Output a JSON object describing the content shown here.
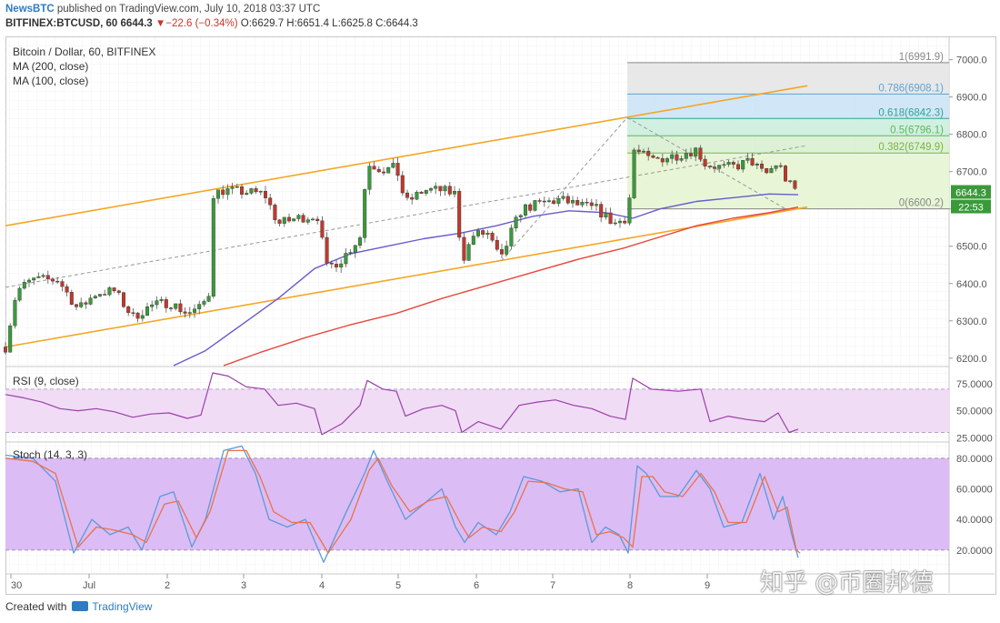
{
  "header": {
    "brand": "NewsBTC",
    "published": " published on TradingView.com, July 10, 2018 03:37 UTC",
    "symbol": "BITFINEX:BTCUSD, 60",
    "last": "6644.3",
    "change_arrow": "▼",
    "change": "−22.6 (−0.34%)",
    "ohlc": "O:6629.7 H:6651.4 L:6625.8 C:6644.3"
  },
  "footer": {
    "created_with": "Created with",
    "tradingview": "TradingView"
  },
  "watermark": "知乎 @币圈邦德",
  "colors": {
    "up": "#3a9a3a",
    "down": "#c0392b",
    "channel": "#f5a623",
    "ma200": "#e8463c",
    "ma100": "#6a5acd",
    "rsi": "#9b3fa8",
    "rsi_band": "#f0dcf5",
    "stoch_band": "#dcbcf5",
    "stoch_k": "#5b9bd5",
    "stoch_d": "#e8724e"
  },
  "chart_data": [
    {
      "type": "candlestick",
      "title": "Bitcoin / Dollar, 60, BITFINEX",
      "legend": [
        "MA (200, close)",
        "MA (100, close)"
      ],
      "x_ticks": [
        "30",
        "Jul",
        "2",
        "3",
        "4",
        "5",
        "6",
        "7",
        "8",
        "9"
      ],
      "y_ticks": [
        "7000.0",
        "6900.0",
        "6800.0",
        "6700.0",
        "6600.0",
        "6500.0",
        "6400.0",
        "6300.0",
        "6200.0"
      ],
      "ylim": [
        6180,
        7060
      ],
      "last_price_label": "6644.3",
      "countdown_label": "22:53",
      "candle_anchors": [
        [
          0,
          6230
        ],
        [
          12,
          6380
        ],
        [
          30,
          6410
        ],
        [
          58,
          6410
        ],
        [
          80,
          6330
        ],
        [
          100,
          6375
        ],
        [
          120,
          6380
        ],
        [
          140,
          6310
        ],
        [
          160,
          6340
        ],
        [
          180,
          6350
        ],
        [
          200,
          6320
        ],
        [
          215,
          6335
        ],
        [
          225,
          6380
        ],
        [
          228,
          6640
        ],
        [
          240,
          6650
        ],
        [
          265,
          6645
        ],
        [
          285,
          6640
        ],
        [
          300,
          6560
        ],
        [
          320,
          6575
        ],
        [
          335,
          6580
        ],
        [
          345,
          6580
        ],
        [
          352,
          6440
        ],
        [
          370,
          6465
        ],
        [
          390,
          6525
        ],
        [
          398,
          6725
        ],
        [
          415,
          6705
        ],
        [
          430,
          6710
        ],
        [
          440,
          6615
        ],
        [
          460,
          6650
        ],
        [
          480,
          6650
        ],
        [
          495,
          6640
        ],
        [
          502,
          6460
        ],
        [
          515,
          6530
        ],
        [
          530,
          6535
        ],
        [
          545,
          6460
        ],
        [
          555,
          6530
        ],
        [
          568,
          6600
        ],
        [
          590,
          6615
        ],
        [
          610,
          6625
        ],
        [
          630,
          6610
        ],
        [
          650,
          6600
        ],
        [
          670,
          6560
        ],
        [
          685,
          6580
        ],
        [
          690,
          6760
        ],
        [
          710,
          6730
        ],
        [
          740,
          6745
        ],
        [
          760,
          6760
        ],
        [
          770,
          6720
        ],
        [
          790,
          6710
        ],
        [
          805,
          6715
        ],
        [
          820,
          6730
        ],
        [
          835,
          6690
        ],
        [
          850,
          6725
        ],
        [
          860,
          6670
        ],
        [
          872,
          6644
        ]
      ],
      "ma100": [
        [
          185,
          6180
        ],
        [
          220,
          6220
        ],
        [
          260,
          6290
        ],
        [
          300,
          6360
        ],
        [
          340,
          6440
        ],
        [
          380,
          6480
        ],
        [
          420,
          6500
        ],
        [
          460,
          6520
        ],
        [
          500,
          6535
        ],
        [
          540,
          6555
        ],
        [
          580,
          6580
        ],
        [
          620,
          6595
        ],
        [
          660,
          6590
        ],
        [
          690,
          6575
        ],
        [
          720,
          6600
        ],
        [
          760,
          6620
        ],
        [
          800,
          6630
        ],
        [
          840,
          6640
        ],
        [
          872,
          6638
        ]
      ],
      "ma200": [
        [
          240,
          6180
        ],
        [
          280,
          6215
        ],
        [
          330,
          6255
        ],
        [
          380,
          6290
        ],
        [
          430,
          6320
        ],
        [
          480,
          6360
        ],
        [
          530,
          6395
        ],
        [
          580,
          6430
        ],
        [
          630,
          6465
        ],
        [
          680,
          6495
        ],
        [
          720,
          6525
        ],
        [
          760,
          6555
        ],
        [
          800,
          6575
        ],
        [
          840,
          6590
        ],
        [
          872,
          6605
        ]
      ],
      "channel_upper": [
        [
          6,
          6555
        ],
        [
          888,
          6930
        ]
      ],
      "channel_lower": [
        [
          6,
          6230
        ],
        [
          888,
          6605
        ]
      ],
      "channel_mid": [
        [
          6,
          6390
        ],
        [
          888,
          6770
        ]
      ],
      "fibonacci": [
        {
          "label": "1(6991.9)",
          "value": 6991.9
        },
        {
          "label": "0.786(6908.1)",
          "value": 6908.1
        },
        {
          "label": "0.618(6842.3)",
          "value": 6842.3
        },
        {
          "label": "0.5(6796.1)",
          "value": 6796.1
        },
        {
          "label": "0.382(6749.9)",
          "value": 6749.9
        },
        {
          "label": "0(6600.2)",
          "value": 6600.2
        }
      ]
    },
    {
      "type": "line",
      "title": "RSI (9, close)",
      "y_ticks": [
        "75.0000",
        "50.0000",
        "25.0000"
      ],
      "ylim": [
        22,
        90
      ],
      "band": [
        30,
        70
      ],
      "values": [
        [
          0,
          65
        ],
        [
          20,
          62
        ],
        [
          40,
          58
        ],
        [
          60,
          52
        ],
        [
          80,
          50
        ],
        [
          100,
          52
        ],
        [
          120,
          49
        ],
        [
          140,
          44
        ],
        [
          160,
          47
        ],
        [
          180,
          48
        ],
        [
          200,
          43
        ],
        [
          215,
          46
        ],
        [
          228,
          85
        ],
        [
          245,
          82
        ],
        [
          265,
          72
        ],
        [
          285,
          70
        ],
        [
          300,
          55
        ],
        [
          320,
          57
        ],
        [
          340,
          52
        ],
        [
          348,
          28
        ],
        [
          370,
          38
        ],
        [
          390,
          55
        ],
        [
          398,
          78
        ],
        [
          415,
          70
        ],
        [
          430,
          68
        ],
        [
          440,
          45
        ],
        [
          460,
          52
        ],
        [
          480,
          55
        ],
        [
          495,
          50
        ],
        [
          502,
          30
        ],
        [
          520,
          40
        ],
        [
          545,
          33
        ],
        [
          565,
          55
        ],
        [
          585,
          58
        ],
        [
          605,
          60
        ],
        [
          625,
          55
        ],
        [
          645,
          52
        ],
        [
          665,
          45
        ],
        [
          682,
          42
        ],
        [
          690,
          80
        ],
        [
          710,
          70
        ],
        [
          740,
          68
        ],
        [
          765,
          70
        ],
        [
          775,
          40
        ],
        [
          795,
          45
        ],
        [
          815,
          42
        ],
        [
          835,
          40
        ],
        [
          850,
          48
        ],
        [
          862,
          30
        ],
        [
          872,
          33
        ]
      ]
    },
    {
      "type": "line",
      "title": "Stoch (14, 3, 3)",
      "y_ticks": [
        "80.0000",
        "60.0000",
        "40.0000",
        "20.0000"
      ],
      "ylim": [
        5,
        90
      ],
      "band": [
        20,
        80
      ],
      "k": [
        [
          0,
          82
        ],
        [
          30,
          80
        ],
        [
          55,
          65
        ],
        [
          75,
          18
        ],
        [
          95,
          40
        ],
        [
          115,
          30
        ],
        [
          135,
          35
        ],
        [
          150,
          20
        ],
        [
          170,
          55
        ],
        [
          185,
          58
        ],
        [
          205,
          22
        ],
        [
          220,
          40
        ],
        [
          240,
          85
        ],
        [
          260,
          88
        ],
        [
          275,
          70
        ],
        [
          290,
          40
        ],
        [
          310,
          35
        ],
        [
          330,
          40
        ],
        [
          350,
          12
        ],
        [
          375,
          45
        ],
        [
          395,
          70
        ],
        [
          405,
          85
        ],
        [
          420,
          65
        ],
        [
          440,
          40
        ],
        [
          460,
          50
        ],
        [
          480,
          60
        ],
        [
          495,
          35
        ],
        [
          505,
          25
        ],
        [
          520,
          38
        ],
        [
          540,
          30
        ],
        [
          555,
          45
        ],
        [
          570,
          68
        ],
        [
          590,
          65
        ],
        [
          610,
          58
        ],
        [
          630,
          60
        ],
        [
          645,
          25
        ],
        [
          660,
          35
        ],
        [
          675,
          30
        ],
        [
          685,
          18
        ],
        [
          695,
          75
        ],
        [
          705,
          70
        ],
        [
          720,
          55
        ],
        [
          740,
          55
        ],
        [
          760,
          72
        ],
        [
          775,
          60
        ],
        [
          790,
          35
        ],
        [
          810,
          38
        ],
        [
          830,
          70
        ],
        [
          845,
          40
        ],
        [
          855,
          55
        ],
        [
          865,
          30
        ],
        [
          872,
          15
        ]
      ],
      "d": [
        [
          0,
          80
        ],
        [
          30,
          78
        ],
        [
          55,
          70
        ],
        [
          80,
          22
        ],
        [
          100,
          35
        ],
        [
          120,
          33
        ],
        [
          140,
          30
        ],
        [
          155,
          25
        ],
        [
          175,
          50
        ],
        [
          190,
          52
        ],
        [
          210,
          28
        ],
        [
          225,
          45
        ],
        [
          245,
          85
        ],
        [
          265,
          85
        ],
        [
          280,
          68
        ],
        [
          295,
          45
        ],
        [
          315,
          38
        ],
        [
          335,
          38
        ],
        [
          355,
          18
        ],
        [
          380,
          40
        ],
        [
          400,
          72
        ],
        [
          410,
          80
        ],
        [
          425,
          62
        ],
        [
          445,
          45
        ],
        [
          465,
          52
        ],
        [
          485,
          55
        ],
        [
          500,
          38
        ],
        [
          510,
          28
        ],
        [
          525,
          35
        ],
        [
          545,
          32
        ],
        [
          560,
          45
        ],
        [
          575,
          65
        ],
        [
          595,
          64
        ],
        [
          615,
          60
        ],
        [
          635,
          58
        ],
        [
          650,
          30
        ],
        [
          665,
          32
        ],
        [
          680,
          28
        ],
        [
          690,
          22
        ],
        [
          700,
          68
        ],
        [
          712,
          68
        ],
        [
          725,
          58
        ],
        [
          745,
          55
        ],
        [
          765,
          70
        ],
        [
          780,
          58
        ],
        [
          795,
          38
        ],
        [
          815,
          38
        ],
        [
          835,
          68
        ],
        [
          850,
          45
        ],
        [
          860,
          48
        ],
        [
          870,
          20
        ],
        [
          874,
          18
        ]
      ]
    }
  ]
}
